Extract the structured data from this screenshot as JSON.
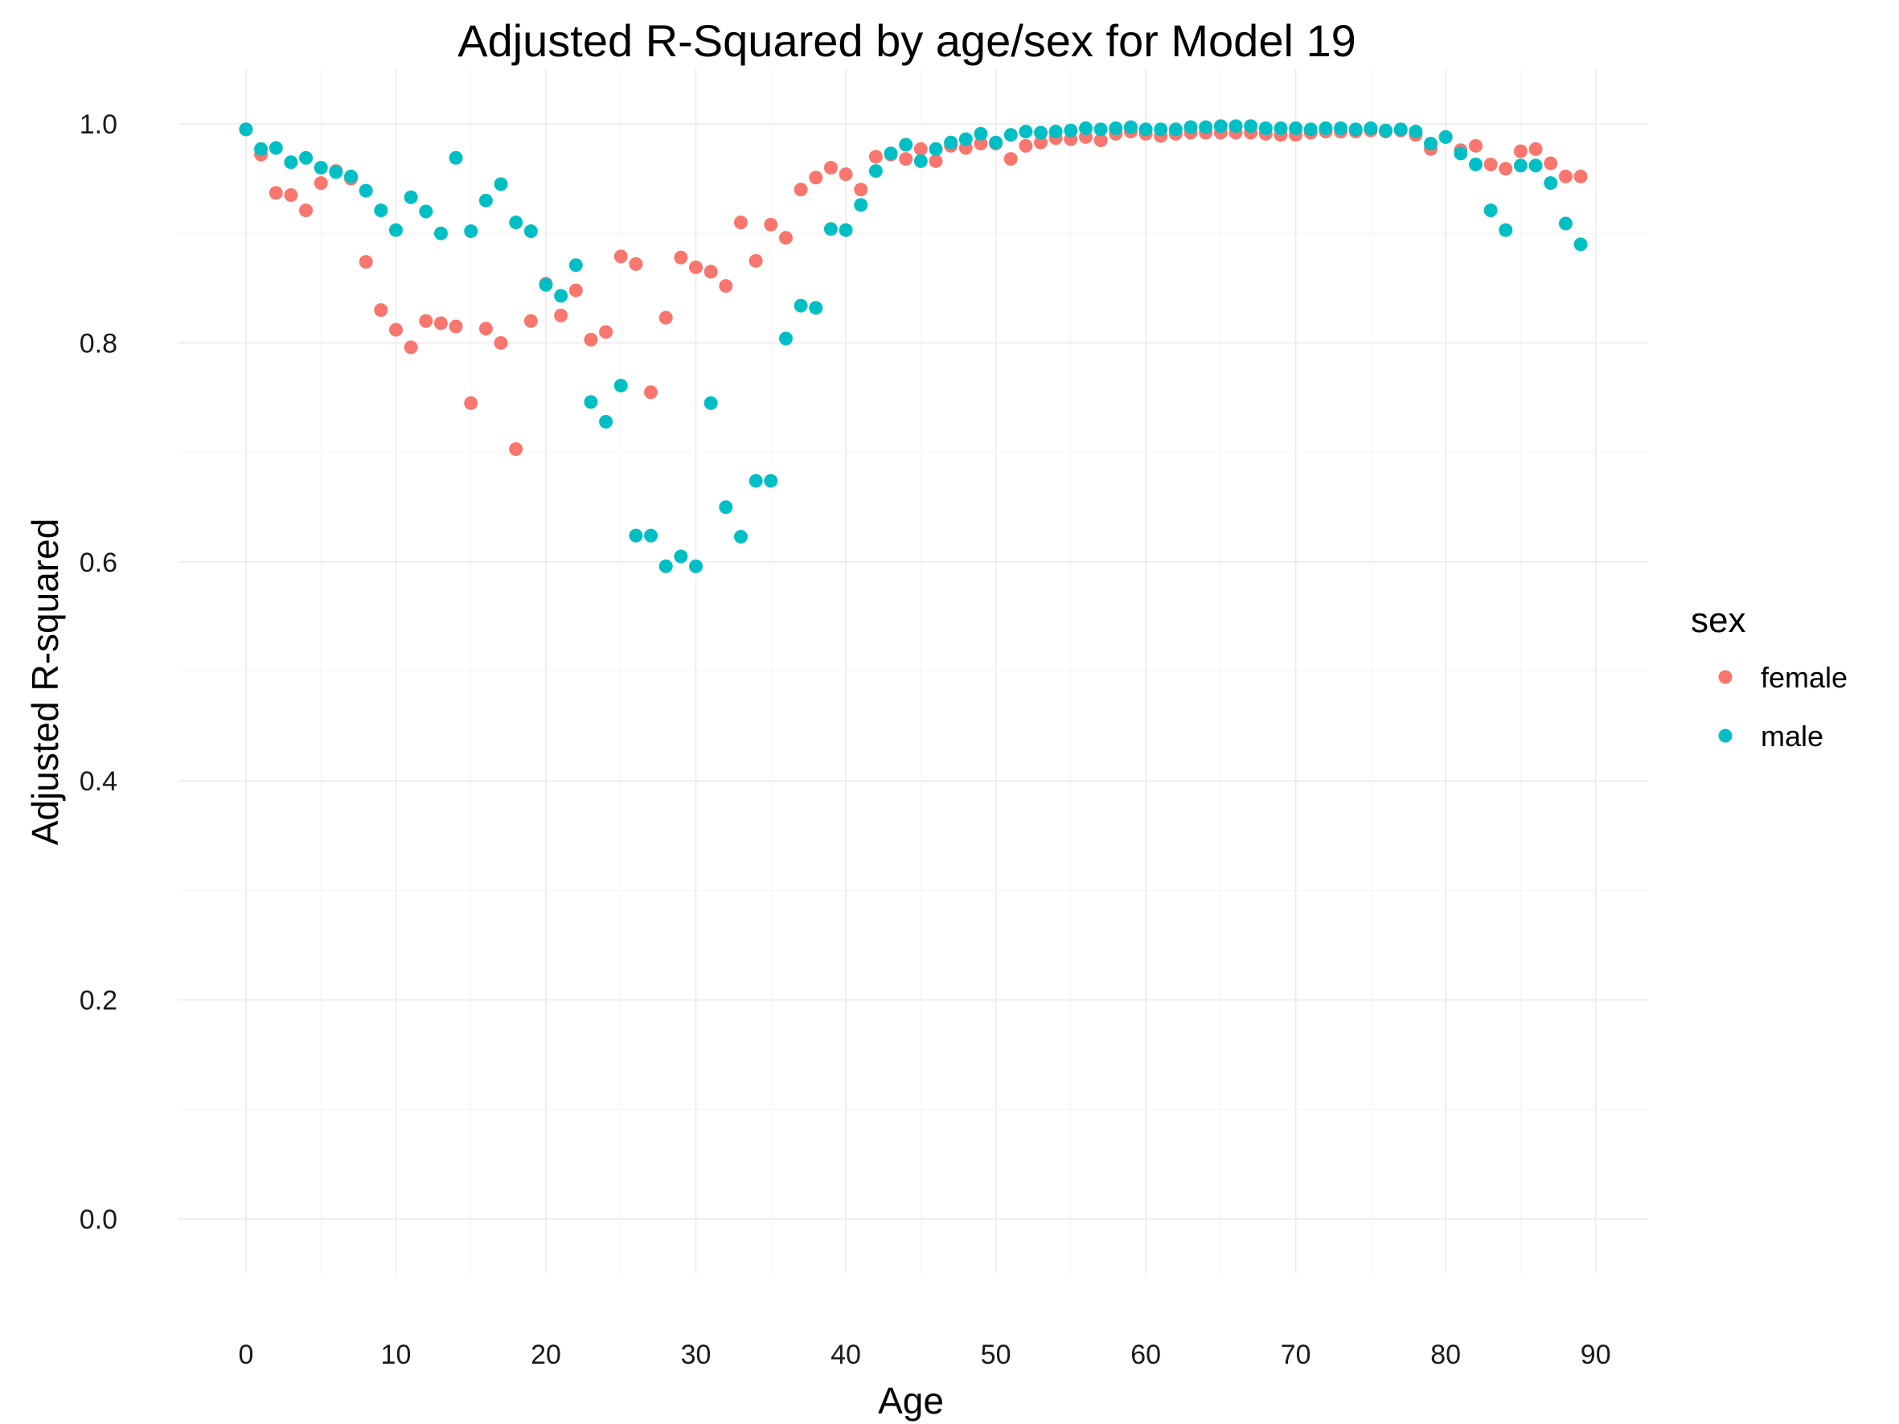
{
  "chart_data": {
    "type": "scatter",
    "title": "Adjusted R-Squared by age/sex for Model 19",
    "xlabel": "Age",
    "ylabel": "Adjusted R-squared",
    "xlim": [
      -4.5,
      93.5
    ],
    "ylim": [
      -0.05,
      1.05
    ],
    "x_ticks": [
      0,
      10,
      20,
      30,
      40,
      50,
      60,
      70,
      80,
      90
    ],
    "y_ticks": [
      0.0,
      0.2,
      0.4,
      0.6,
      0.8,
      1.0
    ],
    "y_tick_labels": [
      "0.0",
      "0.2",
      "0.4",
      "0.6",
      "0.8",
      "1.0"
    ],
    "grid": true,
    "legend": {
      "title": "sex",
      "position": "right"
    },
    "series": [
      {
        "name": "female",
        "color": "#F8766D",
        "x": [
          0,
          1,
          2,
          3,
          4,
          5,
          6,
          7,
          8,
          9,
          10,
          11,
          12,
          13,
          14,
          15,
          16,
          17,
          18,
          19,
          20,
          21,
          22,
          23,
          24,
          25,
          26,
          27,
          28,
          29,
          30,
          31,
          32,
          33,
          34,
          35,
          36,
          37,
          38,
          39,
          40,
          41,
          42,
          43,
          44,
          45,
          46,
          47,
          48,
          49,
          50,
          51,
          52,
          53,
          54,
          55,
          56,
          57,
          58,
          59,
          60,
          61,
          62,
          63,
          64,
          65,
          66,
          67,
          68,
          69,
          70,
          71,
          72,
          73,
          74,
          75,
          76,
          77,
          78,
          79,
          80,
          81,
          82,
          83,
          84,
          85,
          86,
          87,
          88,
          89
        ],
        "y": [
          0.995,
          0.972,
          0.937,
          0.935,
          0.921,
          0.946,
          0.957,
          0.95,
          0.874,
          0.83,
          0.812,
          0.796,
          0.82,
          0.818,
          0.815,
          0.745,
          0.813,
          0.8,
          0.703,
          0.82,
          0.854,
          0.825,
          0.848,
          0.803,
          0.81,
          0.879,
          0.872,
          0.755,
          0.823,
          0.878,
          0.869,
          0.865,
          0.852,
          0.91,
          0.875,
          0.908,
          0.896,
          0.94,
          0.951,
          0.96,
          0.954,
          0.94,
          0.97,
          0.972,
          0.968,
          0.977,
          0.966,
          0.98,
          0.978,
          0.982,
          0.982,
          0.968,
          0.98,
          0.983,
          0.987,
          0.986,
          0.988,
          0.985,
          0.991,
          0.993,
          0.991,
          0.989,
          0.991,
          0.992,
          0.992,
          0.992,
          0.992,
          0.992,
          0.991,
          0.99,
          0.99,
          0.992,
          0.993,
          0.993,
          0.993,
          0.994,
          0.993,
          0.994,
          0.99,
          0.977,
          0.988,
          0.976,
          0.98,
          0.963,
          0.959,
          0.975,
          0.977,
          0.964,
          0.952,
          0.952
        ]
      },
      {
        "name": "male",
        "color": "#00BFC4",
        "x": [
          0,
          1,
          2,
          3,
          4,
          5,
          6,
          7,
          8,
          9,
          10,
          11,
          12,
          13,
          14,
          15,
          16,
          17,
          18,
          19,
          20,
          21,
          22,
          23,
          24,
          25,
          26,
          27,
          28,
          29,
          30,
          31,
          32,
          33,
          34,
          35,
          36,
          37,
          38,
          39,
          40,
          41,
          42,
          43,
          44,
          45,
          46,
          47,
          48,
          49,
          50,
          51,
          52,
          53,
          54,
          55,
          56,
          57,
          58,
          59,
          60,
          61,
          62,
          63,
          64,
          65,
          66,
          67,
          68,
          69,
          70,
          71,
          72,
          73,
          74,
          75,
          76,
          77,
          78,
          79,
          80,
          81,
          82,
          83,
          84,
          85,
          86,
          87,
          88,
          89
        ],
        "y": [
          0.995,
          0.977,
          0.978,
          0.965,
          0.969,
          0.96,
          0.956,
          0.952,
          0.939,
          0.921,
          0.903,
          0.933,
          0.92,
          0.9,
          0.969,
          0.902,
          0.93,
          0.945,
          0.91,
          0.902,
          0.853,
          0.843,
          0.871,
          0.746,
          0.728,
          0.761,
          0.624,
          0.624,
          0.596,
          0.605,
          0.596,
          0.745,
          0.65,
          0.623,
          0.674,
          0.674,
          0.804,
          0.834,
          0.832,
          0.904,
          0.903,
          0.926,
          0.957,
          0.973,
          0.981,
          0.966,
          0.977,
          0.983,
          0.986,
          0.991,
          0.983,
          0.99,
          0.993,
          0.992,
          0.993,
          0.994,
          0.996,
          0.995,
          0.996,
          0.997,
          0.995,
          0.995,
          0.995,
          0.997,
          0.997,
          0.998,
          0.998,
          0.998,
          0.996,
          0.996,
          0.996,
          0.995,
          0.996,
          0.996,
          0.995,
          0.996,
          0.994,
          0.995,
          0.993,
          0.982,
          0.988,
          0.973,
          0.963,
          0.921,
          0.903,
          0.962,
          0.962,
          0.946,
          0.909,
          0.89
        ]
      }
    ]
  }
}
